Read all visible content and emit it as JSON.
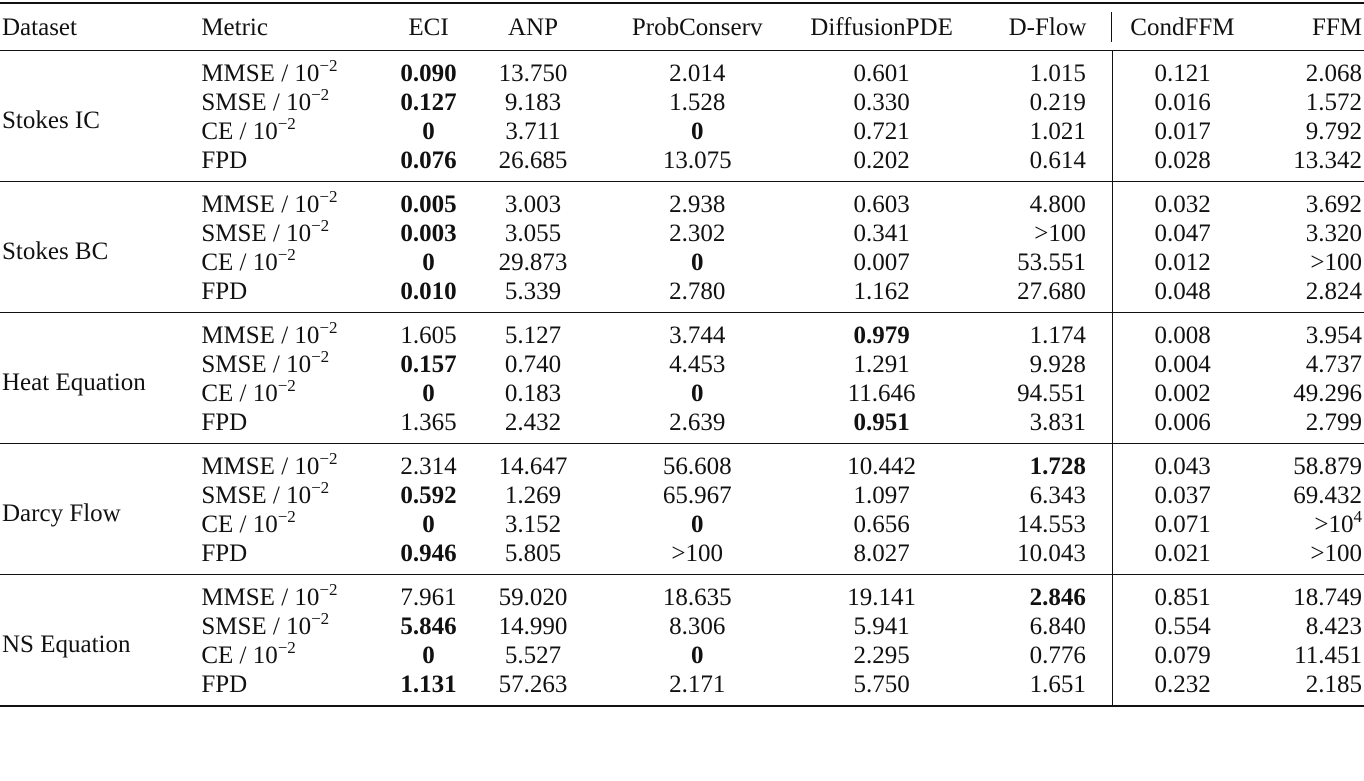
{
  "table": {
    "columns": [
      "Dataset",
      "Metric",
      "ECI",
      "ANP",
      "ProbConserv",
      "DiffusionPDE",
      "D-Flow",
      "CondFFM",
      "FFM"
    ],
    "metric_labels": [
      {
        "base": "MMSE / 10",
        "exp": "−2"
      },
      {
        "base": "SMSE / 10",
        "exp": "−2"
      },
      {
        "base": "CE / 10",
        "exp": "−2"
      },
      {
        "base": "FPD",
        "exp": ""
      }
    ],
    "groups": [
      {
        "dataset": "Stokes IC",
        "rows": [
          {
            "metric": "MMSE",
            "values": [
              "0.090",
              "13.750",
              "2.014",
              "0.601",
              "1.015",
              "0.121",
              "2.068"
            ],
            "bold": [
              0
            ]
          },
          {
            "metric": "SMSE",
            "values": [
              "0.127",
              "9.183",
              "1.528",
              "0.330",
              "0.219",
              "0.016",
              "1.572"
            ],
            "bold": [
              0
            ]
          },
          {
            "metric": "CE",
            "values": [
              "0",
              "3.711",
              "0",
              "0.721",
              "1.021",
              "0.017",
              "9.792"
            ],
            "bold": [
              0,
              2
            ]
          },
          {
            "metric": "FPD",
            "values": [
              "0.076",
              "26.685",
              "13.075",
              "0.202",
              "0.614",
              "0.028",
              "13.342"
            ],
            "bold": [
              0
            ]
          }
        ]
      },
      {
        "dataset": "Stokes BC",
        "rows": [
          {
            "metric": "MMSE",
            "values": [
              "0.005",
              "3.003",
              "2.938",
              "0.603",
              "4.800",
              "0.032",
              "3.692"
            ],
            "bold": [
              0
            ]
          },
          {
            "metric": "SMSE",
            "values": [
              "0.003",
              "3.055",
              "2.302",
              "0.341",
              ">100",
              "0.047",
              "3.320"
            ],
            "bold": [
              0
            ]
          },
          {
            "metric": "CE",
            "values": [
              "0",
              "29.873",
              "0",
              "0.007",
              "53.551",
              "0.012",
              ">100"
            ],
            "bold": [
              0,
              2
            ]
          },
          {
            "metric": "FPD",
            "values": [
              "0.010",
              "5.339",
              "2.780",
              "1.162",
              "27.680",
              "0.048",
              "2.824"
            ],
            "bold": [
              0
            ]
          }
        ]
      },
      {
        "dataset": "Heat Equation",
        "rows": [
          {
            "metric": "MMSE",
            "values": [
              "1.605",
              "5.127",
              "3.744",
              "0.979",
              "1.174",
              "0.008",
              "3.954"
            ],
            "bold": [
              3
            ]
          },
          {
            "metric": "SMSE",
            "values": [
              "0.157",
              "0.740",
              "4.453",
              "1.291",
              "9.928",
              "0.004",
              "4.737"
            ],
            "bold": [
              0
            ]
          },
          {
            "metric": "CE",
            "values": [
              "0",
              "0.183",
              "0",
              "11.646",
              "94.551",
              "0.002",
              "49.296"
            ],
            "bold": [
              0,
              2
            ]
          },
          {
            "metric": "FPD",
            "values": [
              "1.365",
              "2.432",
              "2.639",
              "0.951",
              "3.831",
              "0.006",
              "2.799"
            ],
            "bold": [
              3
            ]
          }
        ]
      },
      {
        "dataset": "Darcy Flow",
        "rows": [
          {
            "metric": "MMSE",
            "values": [
              "2.314",
              "14.647",
              "56.608",
              "10.442",
              "1.728",
              "0.043",
              "58.879"
            ],
            "bold": [
              4
            ]
          },
          {
            "metric": "SMSE",
            "values": [
              "0.592",
              "1.269",
              "65.967",
              "1.097",
              "6.343",
              "0.037",
              "69.432"
            ],
            "bold": [
              0
            ]
          },
          {
            "metric": "CE",
            "values": [
              "0",
              "3.152",
              "0",
              "0.656",
              "14.553",
              "0.071",
              ">10^4"
            ],
            "bold": [
              0,
              2
            ]
          },
          {
            "metric": "FPD",
            "values": [
              "0.946",
              "5.805",
              ">100",
              "8.027",
              "10.043",
              "0.021",
              ">100"
            ],
            "bold": [
              0
            ]
          }
        ]
      },
      {
        "dataset": "NS Equation",
        "rows": [
          {
            "metric": "MMSE",
            "values": [
              "7.961",
              "59.020",
              "18.635",
              "19.141",
              "2.846",
              "0.851",
              "18.749"
            ],
            "bold": [
              4
            ]
          },
          {
            "metric": "SMSE",
            "values": [
              "5.846",
              "14.990",
              "8.306",
              "5.941",
              "6.840",
              "0.554",
              "8.423"
            ],
            "bold": [
              0
            ]
          },
          {
            "metric": "CE",
            "values": [
              "0",
              "5.527",
              "0",
              "2.295",
              "0.776",
              "0.079",
              "11.451"
            ],
            "bold": [
              0,
              2
            ]
          },
          {
            "metric": "FPD",
            "values": [
              "1.131",
              "57.263",
              "2.171",
              "5.750",
              "1.651",
              "0.232",
              "2.185"
            ],
            "bold": [
              0
            ]
          }
        ]
      }
    ]
  }
}
